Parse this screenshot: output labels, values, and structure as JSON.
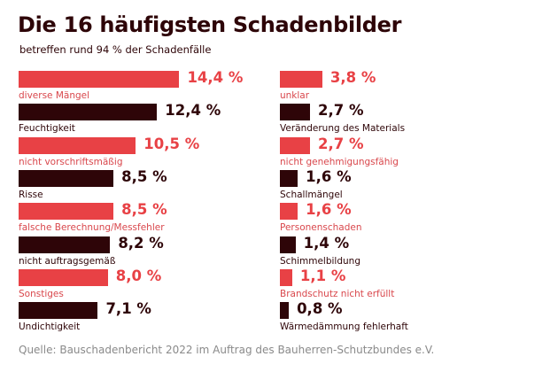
{
  "chart_data": {
    "type": "bar",
    "orientation": "horizontal",
    "title": "Die 16 häufigsten Schadenbilder",
    "subtitle": "betreffen rund 94 % der Schadenfälle",
    "source": "Quelle: Bauschadenbericht 2022 im Auftrag des Bauherren-Schutzbundes e.V.",
    "unit": "%",
    "colors": {
      "primary": "#e84145",
      "secondary": "#2e0508"
    },
    "categories": [
      "diverse Mängel",
      "Feuchtigkeit",
      "nicht vorschriftsmäßig",
      "Risse",
      "falsche Berechnung/Messfehler",
      "nicht auftragsgemäß",
      "Sonstiges",
      "Undichtigkeit",
      "unklar",
      "Veränderung des Materials",
      "nicht genehmigungsfähig",
      "Schallmängel",
      "Personenschaden",
      "Schimmelbildung",
      "Brandschutz nicht erfüllt",
      "Wärmedämmung fehlerhaft"
    ],
    "values": [
      14.4,
      12.4,
      10.5,
      8.5,
      8.5,
      8.2,
      8.0,
      7.1,
      3.8,
      2.7,
      2.7,
      1.6,
      1.6,
      1.4,
      1.1,
      0.8
    ],
    "value_labels": [
      "14,4 %",
      "12,4 %",
      "10,5 %",
      "8,5 %",
      "8,5 %",
      "8,2 %",
      "8,0 %",
      "7,1 %",
      "3,8 %",
      "2,7 %",
      "2,7 %",
      "1,6 %",
      "1,6 %",
      "1,4 %",
      "1,1 %",
      "0,8 %"
    ],
    "grid": false
  }
}
